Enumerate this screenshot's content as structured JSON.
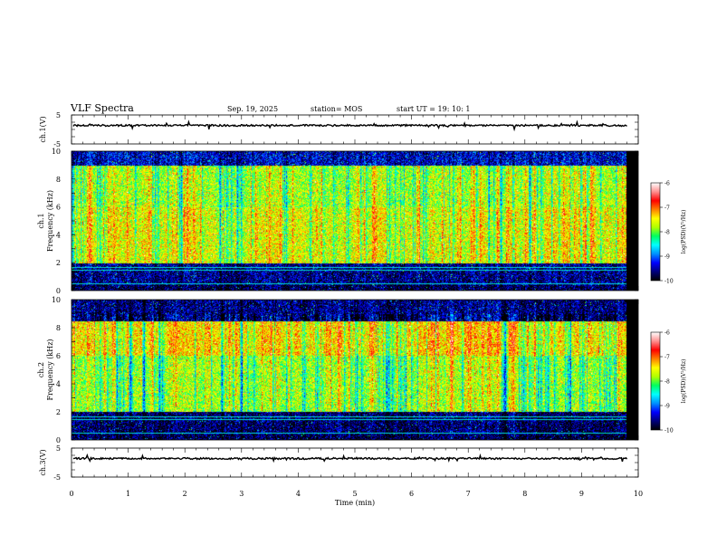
{
  "header": {
    "title": "VLF Spectra",
    "date": "Sep. 19, 2025",
    "station": "station= MOS",
    "start_ut": "start  UT =   19: 10: 1"
  },
  "colorbar": {
    "label": "log(PSD)(V²/Hz)",
    "ticks": [
      -6,
      -7,
      -8,
      -9,
      -10
    ],
    "colormap": [
      "#000000",
      "#00007a",
      "#0000ff",
      "#0090ff",
      "#00ffff",
      "#00ff60",
      "#b0ff00",
      "#ffff00",
      "#ff8000",
      "#ff0000",
      "#ff9090",
      "#ffffff"
    ]
  },
  "chart_data": [
    {
      "type": "line",
      "name": "ch1-waveform",
      "ylabel": "ch.1(V)",
      "yticks": [
        5,
        -5
      ],
      "ylim": [
        -5,
        5
      ],
      "level": 0,
      "xlim": [
        0,
        10
      ]
    },
    {
      "type": "heatmap",
      "name": "ch1-spectrogram",
      "ylabel": "ch.1\nFrequency (kHz)",
      "ylabel_lines": [
        "ch.1",
        "Frequency (kHz)"
      ],
      "yticks": [
        10,
        8,
        6,
        4,
        2,
        0
      ],
      "ylim": [
        0,
        10
      ],
      "xlim": [
        0,
        10
      ],
      "data_end_min": 9.8,
      "band_psd_log": {
        "0-0.4": -9.8,
        "0.4-2": -9.6,
        "2-6": -7.6,
        "6-9": -7.8,
        "9-10": -9.4
      },
      "zlim": [
        -10,
        -6
      ]
    },
    {
      "type": "heatmap",
      "name": "ch2-spectrogram",
      "ylabel": "ch.2\nFrequency (kHz)",
      "ylabel_lines": [
        "ch.2",
        "Frequency (kHz)"
      ],
      "yticks": [
        10,
        8,
        6,
        4,
        2,
        0
      ],
      "ylim": [
        0,
        10
      ],
      "xlim": [
        0,
        10
      ],
      "data_end_min": 9.8,
      "band_psd_log": {
        "0-0.4": -9.8,
        "0.4-2": -9.7,
        "2-6": -7.8,
        "6-8.5": -7.4,
        "8.5-10": -9.6
      },
      "zlim": [
        -10,
        -6
      ]
    },
    {
      "type": "line",
      "name": "ch3-waveform",
      "ylabel": "ch.3(V)",
      "yticks": [
        5,
        -5
      ],
      "ylim": [
        -5,
        5
      ],
      "level": 0,
      "xlim": [
        0,
        10
      ]
    }
  ],
  "xaxis": {
    "label": "Time  (min)",
    "ticks": [
      0,
      1,
      2,
      3,
      4,
      5,
      6,
      7,
      8,
      9,
      10
    ]
  }
}
